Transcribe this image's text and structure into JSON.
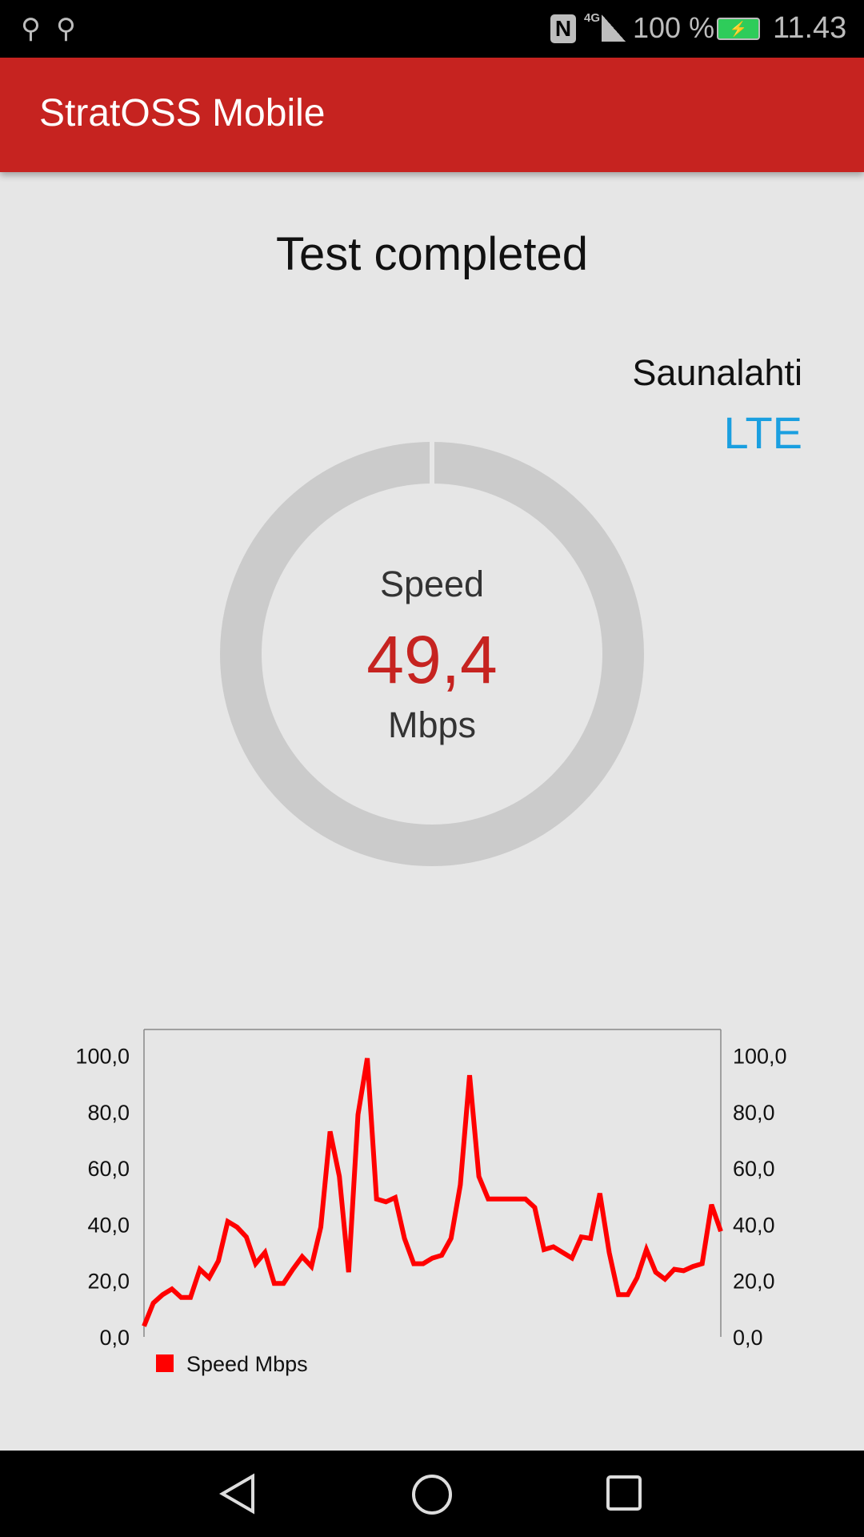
{
  "status_bar": {
    "battery_text": "100 %",
    "time": "11.43",
    "network": "4G",
    "battery_color": "#2ecc5a"
  },
  "app_bar": {
    "title": "StratOSS Mobile",
    "color": "#c62320"
  },
  "main": {
    "status": "Test completed",
    "operator": "Saunalahti",
    "technology": "LTE",
    "technology_color": "#1a9fe0",
    "gauge": {
      "label": "Speed",
      "value": "49,4",
      "unit": "Mbps",
      "value_color": "#c62320"
    }
  },
  "chart_data": {
    "type": "line",
    "title": "",
    "xlabel": "",
    "ylabel": "",
    "ylim": [
      0,
      110
    ],
    "yticks": [
      "0,0",
      "20,0",
      "40,0",
      "60,0",
      "80,0",
      "100,0"
    ],
    "legend_placement": "bottom-left",
    "grid": false,
    "series": [
      {
        "name": "Speed Mbps",
        "color": "#ff0000",
        "values": [
          3.8,
          12,
          15,
          17,
          14,
          14,
          24,
          21,
          27,
          41,
          39,
          35.5,
          26,
          30,
          19,
          19,
          24,
          28.5,
          25,
          39,
          73,
          57,
          23,
          79,
          99,
          49,
          48,
          49.5,
          35,
          26,
          26,
          28,
          29,
          35,
          54,
          93,
          57,
          49,
          49,
          49,
          49,
          49,
          46,
          31,
          32,
          30,
          28,
          35.5,
          35,
          51,
          30,
          15,
          15,
          21,
          31,
          23,
          20.5,
          24,
          23.5,
          25,
          26,
          47,
          37.5
        ]
      }
    ]
  },
  "nav": {
    "back": "back-icon",
    "home": "home-icon",
    "recents": "recents-icon"
  }
}
